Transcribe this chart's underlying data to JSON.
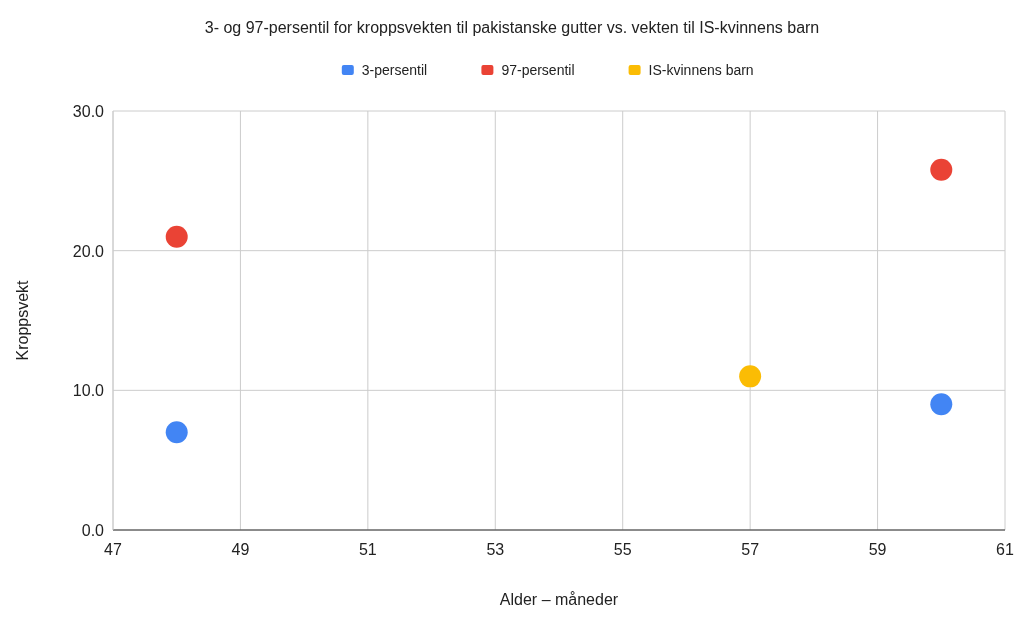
{
  "chart_data": {
    "type": "scatter",
    "title": "3- og 97-persentil for kroppsvekten til pakistanske gutter vs. vekten til IS-kvinnens barn",
    "xlabel": "Alder – måneder",
    "ylabel": "Kroppsvekt",
    "xlim": [
      47,
      61
    ],
    "xticks": [
      47,
      49,
      51,
      53,
      55,
      57,
      59,
      61
    ],
    "ylim": [
      0,
      30
    ],
    "yticks": [
      {
        "value": 0,
        "label": "0.0"
      },
      {
        "value": 10,
        "label": "10.0"
      },
      {
        "value": 20,
        "label": "20.0"
      },
      {
        "value": 30,
        "label": "30.0"
      }
    ],
    "grid": true,
    "legend": "top",
    "marker": "circle",
    "series": [
      {
        "name": "3-persentil",
        "color": "#4285f4",
        "x": [
          48,
          60
        ],
        "values": [
          7,
          9
        ]
      },
      {
        "name": "97-persentil",
        "color": "#ea4335",
        "x": [
          48,
          60
        ],
        "values": [
          21,
          25.8
        ]
      },
      {
        "name": "IS-kvinnens barn",
        "color": "#fbbc04",
        "x": [
          57
        ],
        "values": [
          11
        ]
      }
    ]
  }
}
